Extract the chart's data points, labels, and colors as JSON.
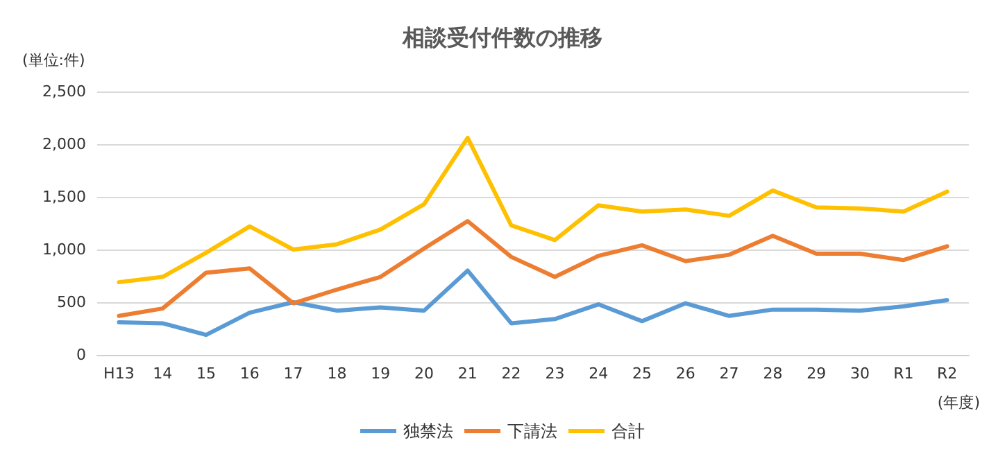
{
  "chart_data": {
    "type": "line",
    "title": "相談受付件数の推移",
    "annotations": [
      "(単位:件)",
      "(年度)"
    ],
    "categories": [
      "H13",
      "14",
      "15",
      "16",
      "17",
      "18",
      "19",
      "20",
      "21",
      "22",
      "23",
      "24",
      "25",
      "26",
      "27",
      "28",
      "29",
      "30",
      "R1",
      "R2"
    ],
    "series": [
      {
        "name": "独禁法",
        "color": "#5b9bd5",
        "values": [
          310,
          300,
          190,
          400,
          500,
          420,
          450,
          420,
          800,
          300,
          340,
          480,
          320,
          490,
          370,
          430,
          430,
          420,
          460,
          520
        ]
      },
      {
        "name": "下請法",
        "color": "#ed7d31",
        "values": [
          370,
          440,
          780,
          820,
          490,
          620,
          740,
          1010,
          1270,
          930,
          740,
          940,
          1040,
          890,
          950,
          1130,
          960,
          960,
          900,
          1030
        ]
      },
      {
        "name": "合計",
        "color": "#ffc000",
        "values": [
          690,
          740,
          970,
          1220,
          1000,
          1050,
          1190,
          1430,
          2060,
          1230,
          1090,
          1420,
          1360,
          1380,
          1320,
          1560,
          1400,
          1390,
          1360,
          1550
        ]
      }
    ],
    "ylim": [
      0,
      2500
    ],
    "yticks": [
      0,
      500,
      {
        "value": 1000,
        "label": "1,000"
      },
      {
        "value": 1500,
        "label": "1,500"
      },
      {
        "value": 2000,
        "label": "2,000"
      },
      {
        "value": 2500,
        "label": "2,500"
      }
    ],
    "grid": "y",
    "legend": "bottom",
    "marker": "none",
    "line_style": "solid"
  }
}
